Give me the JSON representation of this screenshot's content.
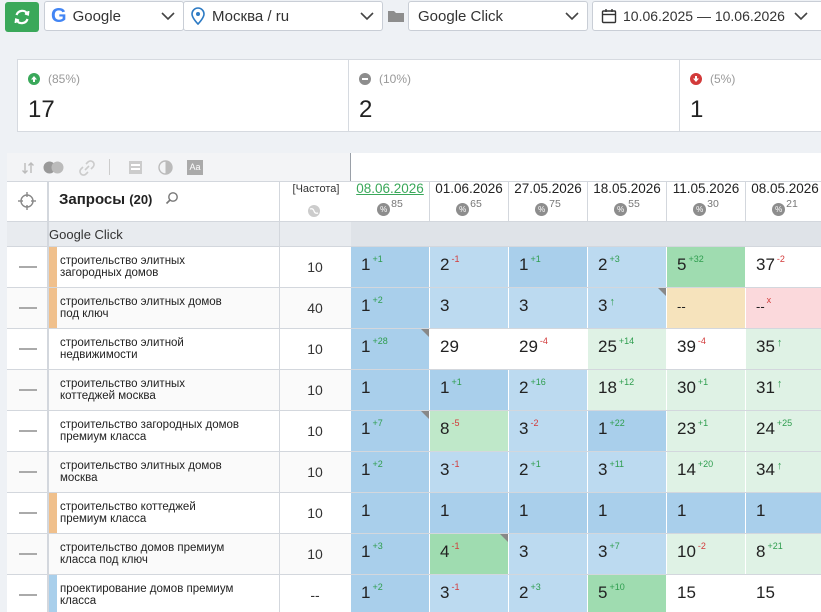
{
  "toolbar": {
    "search_engine": "Google",
    "region": "Москва / ru",
    "project": "Google Click",
    "date_range": "10.06.2025 — 10.06.2026"
  },
  "stats": [
    {
      "pct": "(85%)",
      "count": "17",
      "kind": "up",
      "color": "#3aa85a"
    },
    {
      "pct": "(10%)",
      "count": "2",
      "kind": "same",
      "color": "#8d8d8d"
    },
    {
      "pct": "(5%)",
      "count": "1",
      "kind": "down",
      "color": "#d23a3a"
    }
  ],
  "table": {
    "queries_header": "Запросы",
    "queries_count": "(20)",
    "freq_header": "[Частота]",
    "group_name": "Google Click",
    "dates": [
      {
        "date": "08.06.2026",
        "pct": "85",
        "active": true
      },
      {
        "date": "01.06.2026",
        "pct": "65"
      },
      {
        "date": "27.05.2026",
        "pct": "75"
      },
      {
        "date": "18.05.2026",
        "pct": "55"
      },
      {
        "date": "11.05.2026",
        "pct": "30"
      },
      {
        "date": "08.05.2026",
        "pct": "21"
      }
    ],
    "rows": [
      {
        "query": [
          "строительство элитных",
          "загородных домов"
        ],
        "freq": "10",
        "marker": "#f0c08c",
        "cells": [
          [
            "1",
            "1",
            "up",
            "#a9cfeb",
            0
          ],
          [
            "2",
            "1",
            "dn",
            "#bcdaf0",
            0
          ],
          [
            "1",
            "1",
            "up",
            "#a9cfeb",
            0
          ],
          [
            "2",
            "3",
            "up",
            "#bcdaf0",
            0
          ],
          [
            "5",
            "32",
            "up",
            "#9fdcb0",
            0
          ],
          [
            "37",
            "2",
            "dn",
            "#ffffff",
            0
          ]
        ]
      },
      {
        "query": [
          "строительство элитных домов",
          "под ключ"
        ],
        "freq": "40",
        "marker": "#f0c08c",
        "cells": [
          [
            "1",
            "2",
            "up",
            "#a9cfeb",
            0
          ],
          [
            "3",
            "",
            "",
            "#bcdaf0",
            0
          ],
          [
            "3",
            "",
            "",
            "#bcdaf0",
            0
          ],
          [
            "3",
            "↑",
            "up",
            "#bcdaf0",
            1
          ],
          [
            "--",
            "",
            "",
            "#f6e3bc",
            0
          ],
          [
            "--",
            "x",
            "dn",
            "#fbd9dc",
            0
          ]
        ]
      },
      {
        "query": [
          "строительство элитной",
          "недвижимости"
        ],
        "freq": "10",
        "marker": "",
        "cells": [
          [
            "1",
            "28",
            "up",
            "#a9cfeb",
            1
          ],
          [
            "29",
            "",
            "",
            "#ffffff",
            0
          ],
          [
            "29",
            "4",
            "dn",
            "#ffffff",
            0
          ],
          [
            "25",
            "14",
            "up",
            "#dff2e5",
            0
          ],
          [
            "39",
            "4",
            "dn",
            "#ffffff",
            0
          ],
          [
            "35",
            "↑",
            "up",
            "#dff2e5",
            0
          ]
        ]
      },
      {
        "query": [
          "строительство элитных",
          "коттеджей москва"
        ],
        "freq": "10",
        "marker": "",
        "cells": [
          [
            "1",
            "",
            "",
            "#a9cfeb",
            0
          ],
          [
            "1",
            "1",
            "up",
            "#a9cfeb",
            0
          ],
          [
            "2",
            "16",
            "up",
            "#bcdaf0",
            0
          ],
          [
            "18",
            "12",
            "up",
            "#dff2e5",
            0
          ],
          [
            "30",
            "1",
            "up",
            "#dff2e5",
            0
          ],
          [
            "31",
            "↑",
            "up",
            "#dff2e5",
            0
          ]
        ]
      },
      {
        "query": [
          "строительство загородных домов",
          "премиум класса"
        ],
        "freq": "10",
        "marker": "",
        "cells": [
          [
            "1",
            "7",
            "up",
            "#a9cfeb",
            1
          ],
          [
            "8",
            "5",
            "dn",
            "#bfe8c9",
            0
          ],
          [
            "3",
            "2",
            "dn",
            "#bcdaf0",
            0
          ],
          [
            "1",
            "22",
            "up",
            "#a9cfeb",
            0
          ],
          [
            "23",
            "1",
            "up",
            "#dff2e5",
            0
          ],
          [
            "24",
            "25",
            "up",
            "#dff2e5",
            0
          ]
        ]
      },
      {
        "query": [
          "строительство элитных домов",
          "москва"
        ],
        "freq": "10",
        "marker": "",
        "cells": [
          [
            "1",
            "2",
            "up",
            "#a9cfeb",
            0
          ],
          [
            "3",
            "1",
            "dn",
            "#bcdaf0",
            0
          ],
          [
            "2",
            "1",
            "up",
            "#bcdaf0",
            0
          ],
          [
            "3",
            "11",
            "up",
            "#bcdaf0",
            0
          ],
          [
            "14",
            "20",
            "up",
            "#dff2e5",
            0
          ],
          [
            "34",
            "↑",
            "up",
            "#dff2e5",
            0
          ]
        ]
      },
      {
        "query": [
          "строительство коттеджей",
          "премиум класса"
        ],
        "freq": "10",
        "marker": "#f0c08c",
        "cells": [
          [
            "1",
            "",
            "",
            "#a9cfeb",
            0
          ],
          [
            "1",
            "",
            "",
            "#a9cfeb",
            0
          ],
          [
            "1",
            "",
            "",
            "#a9cfeb",
            0
          ],
          [
            "1",
            "",
            "",
            "#a9cfeb",
            0
          ],
          [
            "1",
            "",
            "",
            "#a9cfeb",
            0
          ],
          [
            "1",
            "",
            "",
            "#a9cfeb",
            0
          ]
        ]
      },
      {
        "query": [
          "строительство домов премиум",
          "класса под ключ"
        ],
        "freq": "10",
        "marker": "",
        "cells": [
          [
            "1",
            "3",
            "up",
            "#a9cfeb",
            0
          ],
          [
            "4",
            "1",
            "dn",
            "#9fdcb0",
            1
          ],
          [
            "3",
            "",
            "",
            "#bcdaf0",
            0
          ],
          [
            "3",
            "7",
            "up",
            "#bcdaf0",
            0
          ],
          [
            "10",
            "2",
            "dn",
            "#dff2e5",
            0
          ],
          [
            "8",
            "21",
            "up",
            "#dff2e5",
            0
          ]
        ]
      },
      {
        "query": [
          "проектирование домов премиум",
          "класса"
        ],
        "freq": "--",
        "marker": "#a9cfeb",
        "cells": [
          [
            "1",
            "2",
            "up",
            "#a9cfeb",
            0
          ],
          [
            "3",
            "1",
            "dn",
            "#bcdaf0",
            0
          ],
          [
            "2",
            "3",
            "up",
            "#bcdaf0",
            0
          ],
          [
            "5",
            "10",
            "up",
            "#9fdcb0",
            0
          ],
          [
            "15",
            "",
            "",
            "#ffffff",
            0
          ],
          [
            "15",
            "",
            "",
            "#ffffff",
            0
          ]
        ]
      }
    ]
  }
}
